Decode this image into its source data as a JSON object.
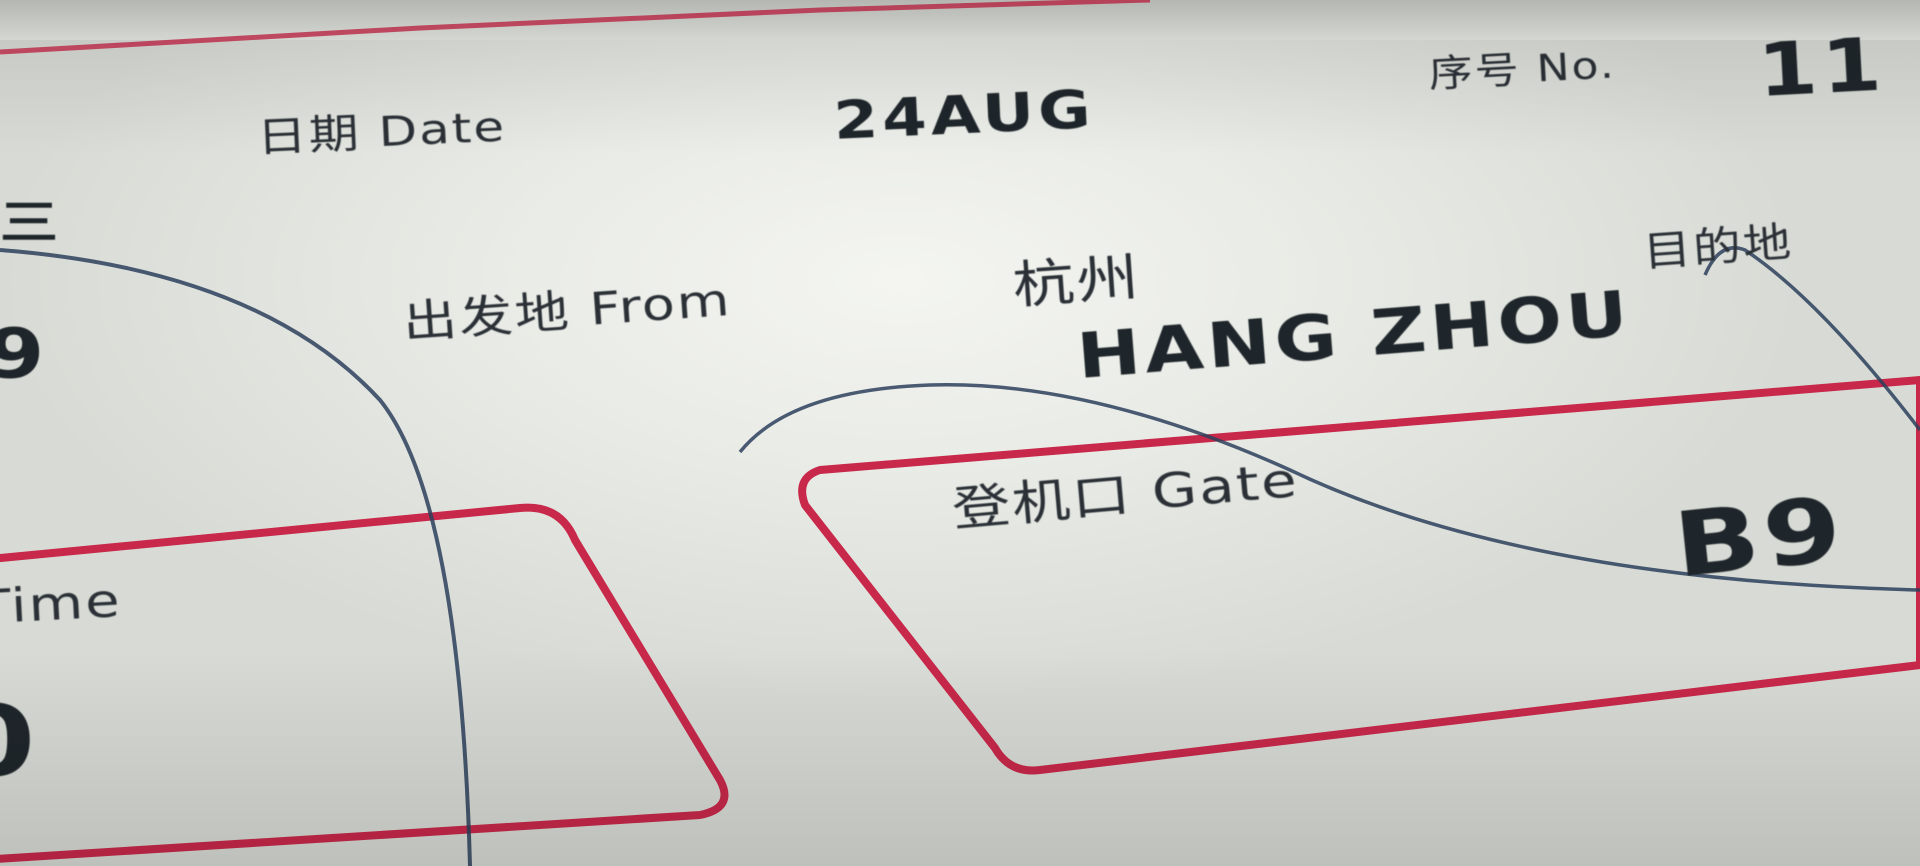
{
  "ticket": {
    "date_label": "日期 Date",
    "date_value": "24AUG",
    "seq_label": "序号 No.",
    "seq_value": "11",
    "from_label": "出发地 From",
    "from_city_cn": "杭州",
    "from_city_en": "HANG ZHOU",
    "dest_label_partial": "目的地",
    "gate_label": "登机口 Gate",
    "gate_value": "B9",
    "time_label_partial": "Time",
    "left_partial_char": "三",
    "left_partial_digit": "9",
    "left_partial_time": "0"
  },
  "colors": {
    "paper": "#eceee9",
    "ink": "#20262b",
    "box_red": "#c8284a",
    "pen_blue": "#2c3f5c"
  }
}
